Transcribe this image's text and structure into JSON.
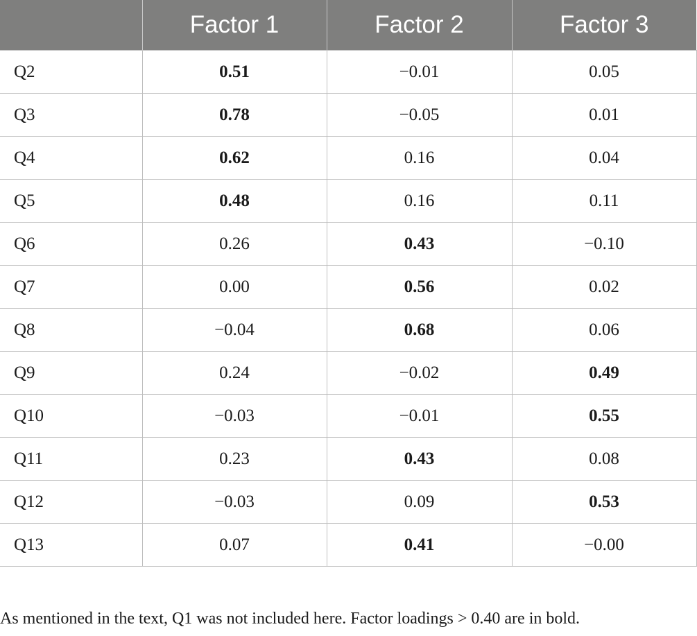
{
  "table": {
    "headers": [
      "",
      "Factor 1",
      "Factor 2",
      "Factor 3"
    ],
    "rows": [
      {
        "item": "Q2",
        "values": [
          "0.51",
          "−0.01",
          "0.05"
        ],
        "bold": [
          true,
          false,
          false
        ]
      },
      {
        "item": "Q3",
        "values": [
          "0.78",
          "−0.05",
          "0.01"
        ],
        "bold": [
          true,
          false,
          false
        ]
      },
      {
        "item": "Q4",
        "values": [
          "0.62",
          "0.16",
          "0.04"
        ],
        "bold": [
          true,
          false,
          false
        ]
      },
      {
        "item": "Q5",
        "values": [
          "0.48",
          "0.16",
          "0.11"
        ],
        "bold": [
          true,
          false,
          false
        ]
      },
      {
        "item": "Q6",
        "values": [
          "0.26",
          "0.43",
          "−0.10"
        ],
        "bold": [
          false,
          true,
          false
        ]
      },
      {
        "item": "Q7",
        "values": [
          "0.00",
          "0.56",
          "0.02"
        ],
        "bold": [
          false,
          true,
          false
        ]
      },
      {
        "item": "Q8",
        "values": [
          "−0.04",
          "0.68",
          "0.06"
        ],
        "bold": [
          false,
          true,
          false
        ]
      },
      {
        "item": "Q9",
        "values": [
          "0.24",
          "−0.02",
          "0.49"
        ],
        "bold": [
          false,
          false,
          true
        ]
      },
      {
        "item": "Q10",
        "values": [
          "−0.03",
          "−0.01",
          "0.55"
        ],
        "bold": [
          false,
          false,
          true
        ]
      },
      {
        "item": "Q11",
        "values": [
          "0.23",
          "0.43",
          "0.08"
        ],
        "bold": [
          false,
          true,
          false
        ]
      },
      {
        "item": "Q12",
        "values": [
          "−0.03",
          "0.09",
          "0.53"
        ],
        "bold": [
          false,
          false,
          true
        ]
      },
      {
        "item": "Q13",
        "values": [
          "0.07",
          "0.41",
          "−0.00"
        ],
        "bold": [
          false,
          true,
          false
        ]
      }
    ]
  },
  "footnote": "As mentioned in the text, Q1 was not included here. Factor loadings > 0.40 are in bold.",
  "colors": {
    "header_bg": "#7f7f7e",
    "header_text": "#ffffff",
    "grid": "#bdbdbd"
  }
}
